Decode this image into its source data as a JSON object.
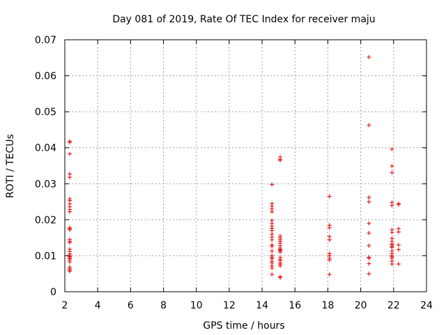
{
  "chart_data": {
    "type": "scatter",
    "title": "Day 081 of 2019, Rate Of TEC Index for receiver maju",
    "xlabel": "GPS time / hours",
    "ylabel": "ROTI / TECUs",
    "xlim": [
      2,
      24
    ],
    "ylim": [
      0,
      0.07
    ],
    "xticks": [
      2,
      4,
      6,
      8,
      10,
      12,
      14,
      16,
      18,
      20,
      22,
      24
    ],
    "yticks": [
      0,
      0.01,
      0.02,
      0.03,
      0.04,
      0.05,
      0.06,
      0.07
    ],
    "ytick_labels": [
      "0",
      "0.01",
      "0.02",
      "0.03",
      "0.04",
      "0.05",
      "0.06",
      "0.07"
    ],
    "grid": true,
    "marker": "plus",
    "color": "#dd0000",
    "series": [
      {
        "name": "ROTI",
        "x": [
          2.3,
          2.3,
          2.3,
          2.3,
          2.3,
          2.3,
          2.3,
          2.3,
          2.3,
          2.3,
          2.3,
          2.3,
          2.3,
          2.3,
          2.3,
          2.3,
          2.3,
          2.3,
          2.3,
          2.3,
          2.3,
          2.3,
          2.3,
          2.3,
          2.3,
          2.3,
          2.3,
          2.3,
          2.3,
          2.3,
          14.6,
          14.6,
          14.6,
          14.6,
          14.6,
          14.6,
          14.6,
          14.6,
          14.6,
          14.6,
          14.6,
          14.6,
          14.6,
          14.6,
          14.6,
          14.6,
          14.6,
          14.6,
          14.6,
          14.6,
          14.6,
          14.6,
          14.6,
          14.6,
          15.1,
          15.1,
          15.1,
          15.1,
          15.1,
          15.1,
          15.1,
          15.1,
          15.1,
          15.1,
          15.1,
          15.1,
          15.1,
          15.1,
          15.1,
          15.1,
          15.1,
          15.1,
          15.1,
          15.1,
          15.1,
          15.1,
          18.1,
          18.1,
          18.1,
          18.1,
          18.1,
          18.1,
          18.1,
          18.1,
          18.1,
          18.1,
          20.5,
          20.5,
          20.5,
          20.5,
          20.5,
          20.5,
          20.5,
          20.5,
          20.5,
          20.5,
          20.5,
          21.9,
          21.9,
          21.9,
          21.9,
          21.9,
          21.9,
          21.9,
          21.9,
          21.9,
          21.9,
          21.9,
          21.9,
          21.9,
          21.9,
          21.9,
          21.9,
          21.9,
          21.9,
          21.9,
          21.9,
          22.3,
          22.3,
          22.3,
          22.3,
          22.3,
          22.3,
          22.3
        ],
        "y": [
          0.0418,
          0.0415,
          0.0383,
          0.0327,
          0.0318,
          0.0258,
          0.0253,
          0.0244,
          0.0236,
          0.0228,
          0.0222,
          0.0178,
          0.0175,
          0.0172,
          0.0145,
          0.014,
          0.0137,
          0.0118,
          0.0112,
          0.0105,
          0.0101,
          0.0098,
          0.0095,
          0.0092,
          0.0088,
          0.0083,
          0.0068,
          0.0064,
          0.006,
          0.0057,
          0.0298,
          0.0245,
          0.0238,
          0.023,
          0.0222,
          0.0198,
          0.019,
          0.0182,
          0.0176,
          0.017,
          0.016,
          0.0152,
          0.0144,
          0.013,
          0.0126,
          0.0113,
          0.01,
          0.0096,
          0.0092,
          0.0085,
          0.008,
          0.0072,
          0.0066,
          0.0048,
          0.0374,
          0.0368,
          0.0365,
          0.0155,
          0.015,
          0.0145,
          0.014,
          0.0135,
          0.0128,
          0.0122,
          0.0118,
          0.0116,
          0.0114,
          0.011,
          0.0095,
          0.009,
          0.0086,
          0.008,
          0.0076,
          0.0072,
          0.0042,
          0.0039,
          0.0265,
          0.0185,
          0.0178,
          0.0153,
          0.0144,
          0.0106,
          0.01,
          0.0093,
          0.0088,
          0.0048,
          0.0652,
          0.0463,
          0.0262,
          0.025,
          0.019,
          0.0163,
          0.0128,
          0.0096,
          0.0093,
          0.0078,
          0.005,
          0.0396,
          0.0349,
          0.0331,
          0.0248,
          0.024,
          0.0172,
          0.0165,
          0.0148,
          0.014,
          0.0133,
          0.013,
          0.0126,
          0.0123,
          0.0113,
          0.0106,
          0.01,
          0.0097,
          0.0093,
          0.0085,
          0.0077,
          0.0245,
          0.0242,
          0.0175,
          0.0166,
          0.013,
          0.0117,
          0.0077
        ]
      }
    ]
  }
}
